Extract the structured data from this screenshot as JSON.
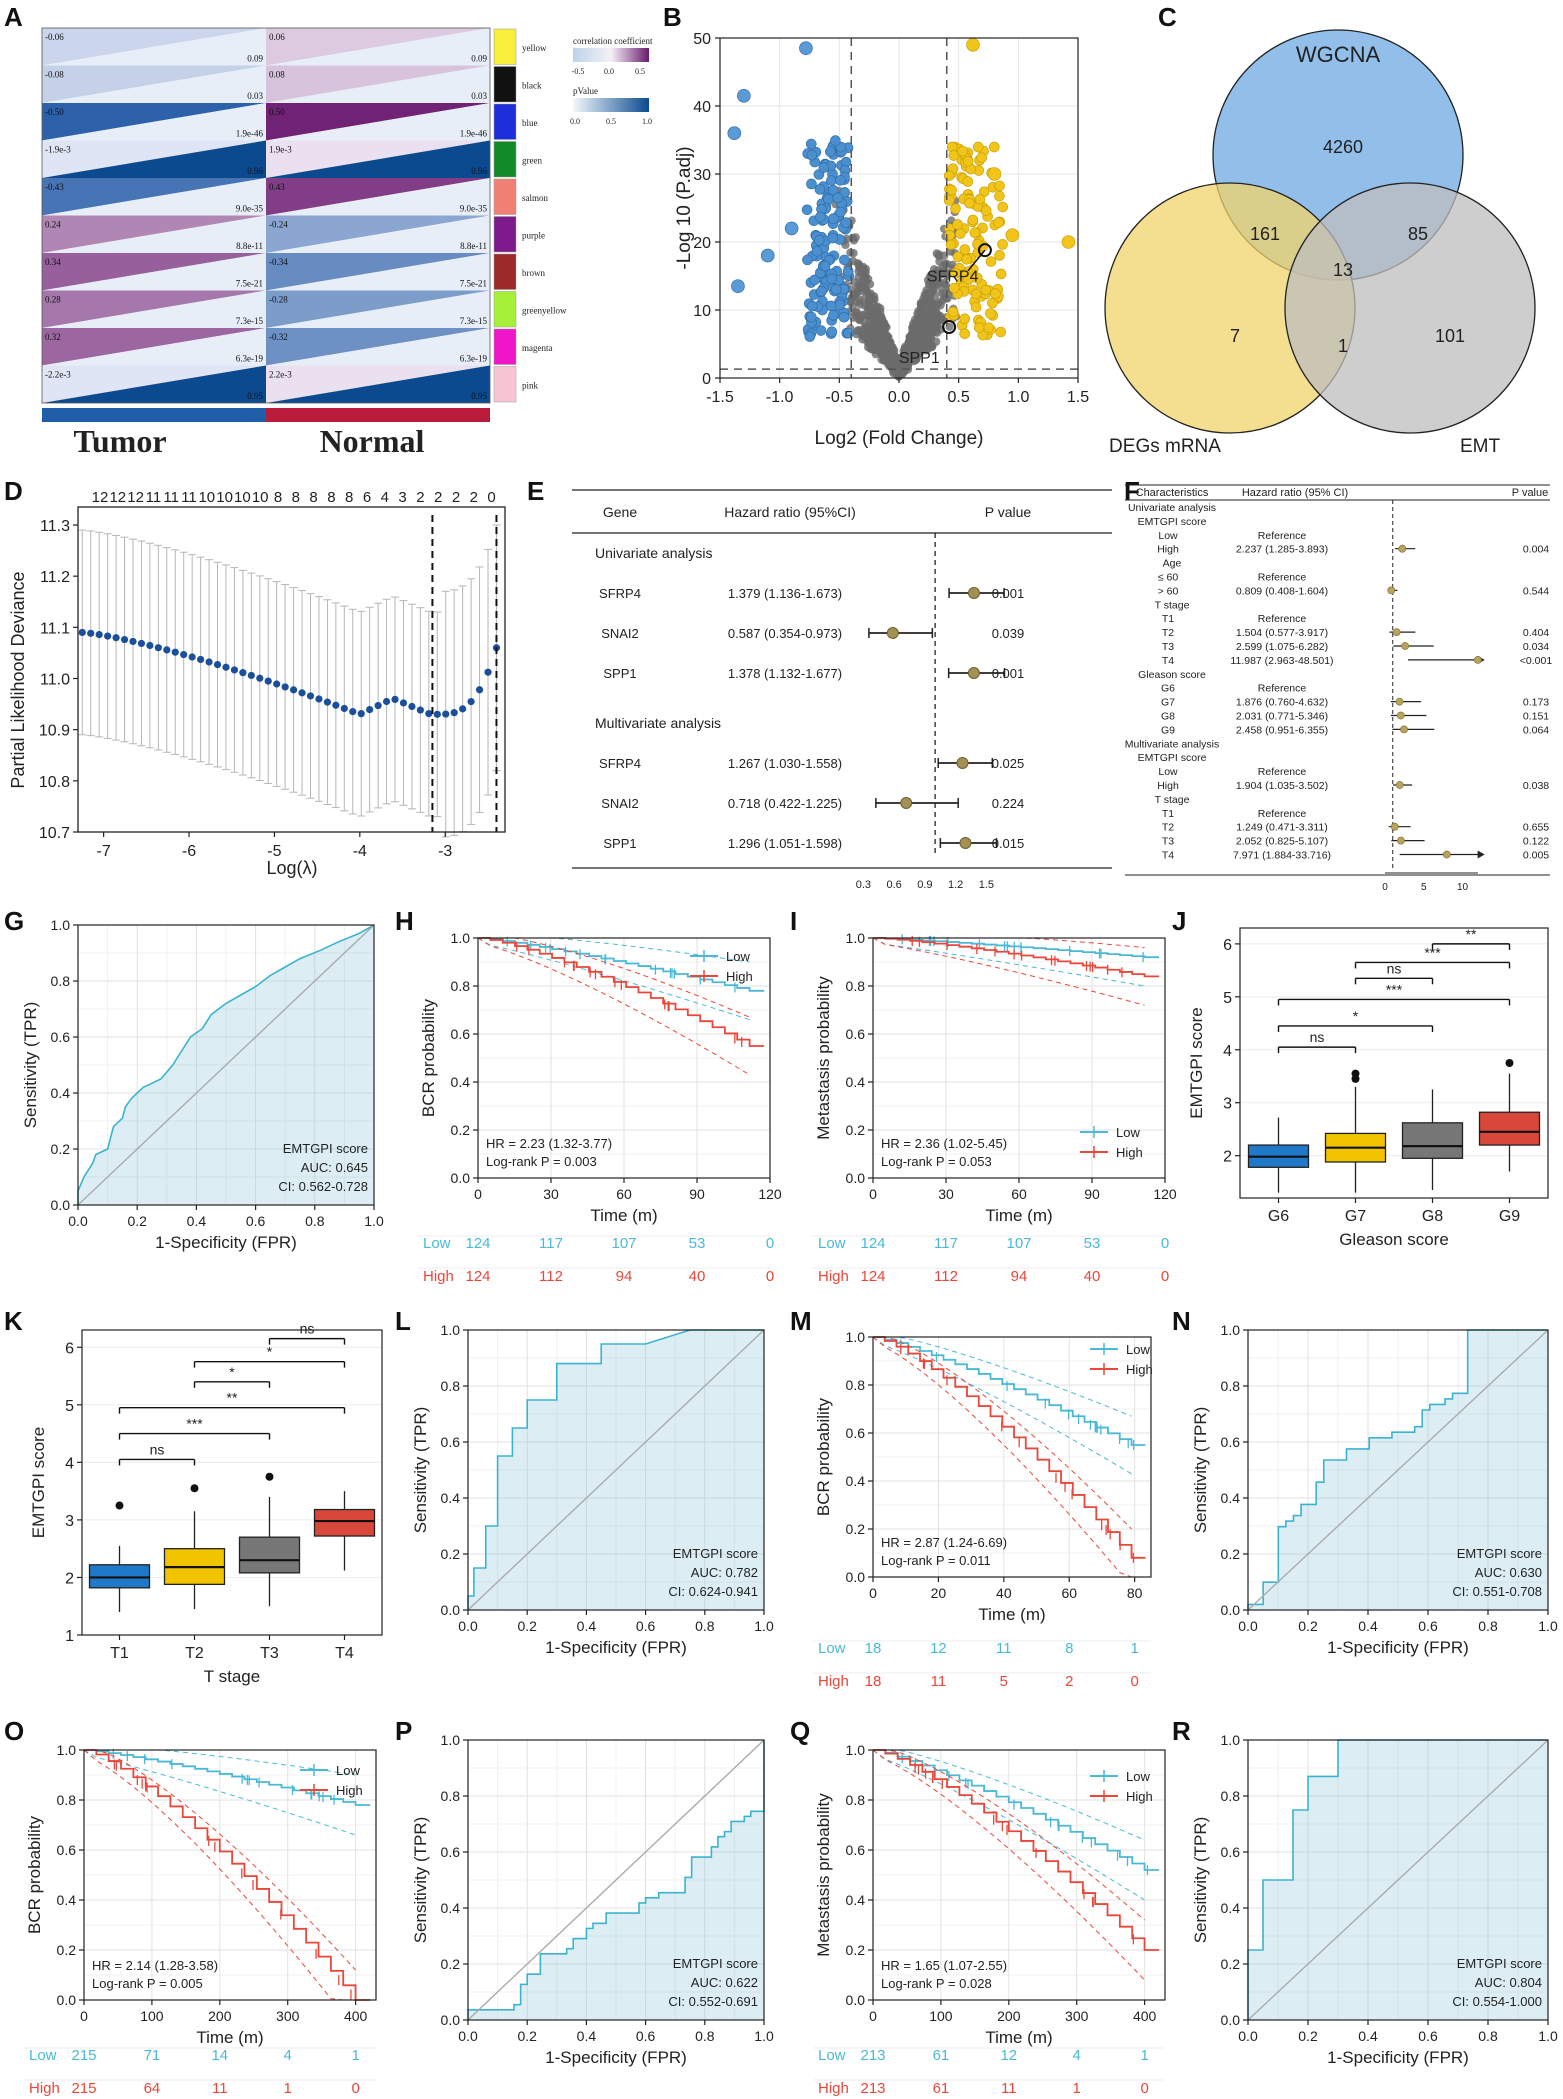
{
  "panel_labels": [
    "A",
    "B",
    "C",
    "D",
    "E",
    "F",
    "G",
    "H",
    "I",
    "J",
    "K",
    "L",
    "M",
    "N",
    "O",
    "P",
    "Q",
    "R"
  ],
  "colors": {
    "blue": "#1f77b4",
    "gold": "#f0c419",
    "grey": "#6b6b6b",
    "purple": "#6a1b6e",
    "navy": "#08306b",
    "low": "#4ab9d6",
    "high": "#e8473a",
    "fill": "#d9eef4",
    "curve": "#3bb3d0"
  },
  "panelA": {
    "column_labels": [
      "Tumor",
      "Normal"
    ],
    "legend_title1": "correlation coefficient",
    "legend_ticks1": [
      "-0.5",
      "0.0",
      "0.5"
    ],
    "legend_title2": "pValue",
    "legend_ticks2": [
      "0.0",
      "0.5",
      "1.0"
    ],
    "modules": [
      {
        "name": "yellow",
        "color": "#f7ef3a",
        "tumor_r": "-0.06",
        "tumor_p": "0.09",
        "normal_r": "0.06",
        "normal_p": "0.09"
      },
      {
        "name": "black",
        "color": "#111111",
        "tumor_r": "-0.08",
        "tumor_p": "0.03",
        "normal_r": "0.08",
        "normal_p": "0.03"
      },
      {
        "name": "blue",
        "color": "#1e2fd9",
        "tumor_r": "-0.50",
        "tumor_p": "1.9e-46",
        "normal_r": "0.50",
        "normal_p": "1.9e-46"
      },
      {
        "name": "green",
        "color": "#138a2a",
        "tumor_r": "-1.9e-3",
        "tumor_p": "0.96",
        "normal_r": "1.9e-3",
        "normal_p": "0.96"
      },
      {
        "name": "salmon",
        "color": "#f07f74",
        "tumor_r": "-0.43",
        "tumor_p": "9.0e-35",
        "normal_r": "0.43",
        "normal_p": "9.0e-35"
      },
      {
        "name": "purple",
        "color": "#7d1a8c",
        "tumor_r": "0.24",
        "tumor_p": "8.8e-11",
        "normal_r": "-0.24",
        "normal_p": "8.8e-11"
      },
      {
        "name": "brown",
        "color": "#9c2a2a",
        "tumor_r": "0.34",
        "tumor_p": "7.5e-21",
        "normal_r": "-0.34",
        "normal_p": "7.5e-21"
      },
      {
        "name": "greenyellow",
        "color": "#a6f03a",
        "tumor_r": "0.28",
        "tumor_p": "7.3e-15",
        "normal_r": "-0.28",
        "normal_p": "7.3e-15"
      },
      {
        "name": "magenta",
        "color": "#f015c8",
        "tumor_r": "0.32",
        "tumor_p": "6.3e-19",
        "normal_r": "-0.32",
        "normal_p": "6.3e-19"
      },
      {
        "name": "pink",
        "color": "#f7c6d2",
        "tumor_r": "-2.2e-3",
        "tumor_p": "0.95",
        "normal_r": "2.2e-3",
        "normal_p": "0.95"
      }
    ]
  },
  "chart_data": [
    {
      "panel": "B",
      "type": "scatter",
      "title": "",
      "xlabel": "Log2 (Fold Change)",
      "ylabel": "-Log 10 (P.adj)",
      "xlim": [
        -1.5,
        1.5
      ],
      "ylim": [
        0,
        50
      ],
      "xticks": [
        "-1.5",
        "-1.0",
        "-0.5",
        "0.0",
        "0.5",
        "1.0",
        "1.5"
      ],
      "yticks": [
        "0",
        "10",
        "20",
        "30",
        "40",
        "50"
      ],
      "annotations": [
        "SFRP4",
        "SPP1"
      ]
    },
    {
      "panel": "C",
      "type": "venn",
      "sets": [
        "WGCNA",
        "DEGs mRNA",
        "EMT"
      ],
      "regions": {
        "WGCNA_only": "4260",
        "WGCNA_DEG": "161",
        "WGCNA_EMT": "85",
        "all": "13",
        "DEG_only": "7",
        "DEG_EMT": "1",
        "EMT_only": "101"
      }
    },
    {
      "panel": "D",
      "type": "line",
      "xlabel": "Log(λ)",
      "ylabel": "Partial Likelihood Deviance",
      "xlim": [
        -7.3,
        -2.3
      ],
      "ylim": [
        10.7,
        11.3
      ],
      "xticks": [
        "-7",
        "-6",
        "-5",
        "-4",
        "-3"
      ],
      "yticks": [
        "10.7",
        "10.8",
        "10.9",
        "11.0",
        "11.1",
        "11.2",
        "11.3"
      ],
      "top_ticks": [
        "12",
        "12",
        "12",
        "11",
        "11",
        "11",
        "10",
        "10",
        "10",
        "10",
        "8",
        "8",
        "8",
        "8",
        "8",
        "6",
        "4",
        "3",
        "2",
        "2",
        "2",
        "2",
        "0"
      ]
    },
    {
      "panel": "E",
      "type": "table",
      "headers": [
        "Gene",
        "Hazard ratio (95%CI)",
        "P value"
      ],
      "sections": [
        {
          "name": "Univariate analysis",
          "rows": [
            [
              "SFRP4",
              "1.379 (1.136-1.673)",
              "0.001"
            ],
            [
              "SNAI2",
              "0.587 (0.354-0.973)",
              "0.039"
            ],
            [
              "SPP1",
              "1.378 (1.132-1.677)",
              "0.001"
            ]
          ]
        },
        {
          "name": "Multivariate analysis",
          "rows": [
            [
              "SFRP4",
              "1.267 (1.030-1.558)",
              "0.025"
            ],
            [
              "SNAI2",
              "0.718 (0.422-1.225)",
              "0.224"
            ],
            [
              "SPP1",
              "1.296 (1.051-1.598)",
              "0.015"
            ]
          ]
        }
      ],
      "axis_ticks": [
        "0.3",
        "0.6",
        "0.9",
        "1.2",
        "1.5"
      ]
    },
    {
      "panel": "F",
      "type": "table",
      "headers": [
        "Characteristics",
        "Hazard ratio (95% CI)",
        "P value"
      ],
      "rows": [
        [
          "Univariate analysis",
          "",
          ""
        ],
        [
          "EMTGPI score",
          "",
          ""
        ],
        [
          "Low",
          "Reference",
          ""
        ],
        [
          "High",
          "2.237 (1.285-3.893)",
          "0.004"
        ],
        [
          "Age",
          "",
          ""
        ],
        [
          "≤ 60",
          "Reference",
          ""
        ],
        [
          "> 60",
          "0.809 (0.408-1.604)",
          "0.544"
        ],
        [
          "T stage",
          "",
          ""
        ],
        [
          "T1",
          "Reference",
          ""
        ],
        [
          "T2",
          "1.504 (0.577-3.917)",
          "0.404"
        ],
        [
          "T3",
          "2.599 (1.075-6.282)",
          "0.034"
        ],
        [
          "T4",
          "11.987 (2.963-48.501)",
          "<0.001"
        ],
        [
          "Gleason score",
          "",
          ""
        ],
        [
          "G6",
          "Reference",
          ""
        ],
        [
          "G7",
          "1.876 (0.760-4.632)",
          "0.173"
        ],
        [
          "G8",
          "2.031 (0.771-5.346)",
          "0.151"
        ],
        [
          "G9",
          "2.458 (0.951-6.355)",
          "0.064"
        ],
        [
          "Multivariate analysis",
          "",
          ""
        ],
        [
          "EMTGPI score",
          "",
          ""
        ],
        [
          "Low",
          "Reference",
          ""
        ],
        [
          "High",
          "1.904 (1.035-3.502)",
          "0.038"
        ],
        [
          "T stage",
          "",
          ""
        ],
        [
          "T1",
          "Reference",
          ""
        ],
        [
          "T2",
          "1.249 (0.471-3.311)",
          "0.655"
        ],
        [
          "T3",
          "2.052 (0.825-5.107)",
          "0.122"
        ],
        [
          "T4",
          "7.971 (1.884-33.716)",
          "0.005"
        ]
      ],
      "axis_ticks": [
        "0",
        "5",
        "10"
      ]
    },
    {
      "panel": "G",
      "type": "roc",
      "legend": "EMTGPI score",
      "auc": "AUC: 0.645",
      "ci": "CI: 0.562-0.728"
    },
    {
      "panel": "H",
      "type": "km",
      "ylabel": "BCR probability",
      "xlabel": "Time (m)",
      "xticks": [
        "0",
        "30",
        "60",
        "90",
        "120"
      ],
      "hr": "HR = 2.23 (1.32-3.77)",
      "p": "Log-rank P = 0.003",
      "risk_low": [
        "124",
        "117",
        "107",
        "53",
        "0"
      ],
      "risk_high": [
        "124",
        "112",
        "94",
        "40",
        "0"
      ]
    },
    {
      "panel": "I",
      "type": "km",
      "ylabel": "Metastasis probability",
      "xlabel": "Time (m)",
      "xticks": [
        "0",
        "30",
        "60",
        "90",
        "120"
      ],
      "hr": "HR = 2.36 (1.02-5.45)",
      "p": "Log-rank P = 0.053",
      "risk_low": [
        "124",
        "117",
        "107",
        "53",
        "0"
      ],
      "risk_high": [
        "124",
        "112",
        "94",
        "40",
        "0"
      ]
    },
    {
      "panel": "J",
      "type": "boxplot",
      "xlabel": "Gleason score",
      "ylabel": "EMTGPI score",
      "categories": [
        "G6",
        "G7",
        "G8",
        "G9"
      ],
      "yticks": [
        "2",
        "3",
        "4",
        "5",
        "6"
      ],
      "signif": [
        "ns",
        "*",
        "***",
        "ns",
        "***",
        "**"
      ]
    },
    {
      "panel": "K",
      "type": "boxplot",
      "xlabel": "T stage",
      "ylabel": "EMTGPI score",
      "categories": [
        "T1",
        "T2",
        "T3",
        "T4"
      ],
      "yticks": [
        "1",
        "2",
        "3",
        "4",
        "5",
        "6"
      ],
      "signif": [
        "ns",
        "***",
        "**",
        "*",
        "*",
        "ns"
      ]
    },
    {
      "panel": "L",
      "type": "roc",
      "legend": "EMTGPI score",
      "auc": "AUC: 0.782",
      "ci": "CI: 0.624-0.941"
    },
    {
      "panel": "M",
      "type": "km",
      "ylabel": "BCR probability",
      "xlabel": "Time (m)",
      "xticks": [
        "0",
        "20",
        "40",
        "60",
        "80"
      ],
      "hr": "HR = 2.87 (1.24-6.69)",
      "p": "Log-rank P = 0.011",
      "risk_low": [
        "18",
        "12",
        "11",
        "8",
        "1"
      ],
      "risk_high": [
        "18",
        "11",
        "5",
        "2",
        "0"
      ]
    },
    {
      "panel": "N",
      "type": "roc",
      "legend": "EMTGPI score",
      "auc": "AUC: 0.630",
      "ci": "CI: 0.551-0.708"
    },
    {
      "panel": "O",
      "type": "km",
      "ylabel": "BCR probability",
      "xlabel": "Time (m)",
      "xticks": [
        "0",
        "100",
        "200",
        "300",
        "400"
      ],
      "hr": "HR = 2.14 (1.28-3.58)",
      "p": "Log-rank P = 0.005",
      "risk_low": [
        "215",
        "71",
        "14",
        "4",
        "1"
      ],
      "risk_high": [
        "215",
        "64",
        "11",
        "1",
        "0"
      ]
    },
    {
      "panel": "P",
      "type": "roc",
      "legend": "EMTGPI score",
      "auc": "AUC: 0.622",
      "ci": "CI: 0.552-0.691"
    },
    {
      "panel": "Q",
      "type": "km",
      "ylabel": "Metastasis probability",
      "xlabel": "Time (m)",
      "xticks": [
        "0",
        "100",
        "200",
        "300",
        "400"
      ],
      "hr": "HR = 1.65 (1.07-2.55)",
      "p": "Log-rank P = 0.028",
      "risk_low": [
        "213",
        "61",
        "12",
        "4",
        "1"
      ],
      "risk_high": [
        "213",
        "61",
        "11",
        "1",
        "0"
      ]
    },
    {
      "panel": "R",
      "type": "roc",
      "legend": "EMTGPI score",
      "auc": "AUC: 0.804",
      "ci": "CI: 0.554-1.000"
    }
  ],
  "common": {
    "legend_low": "Low",
    "legend_high": "High",
    "roc_xlabel": "1-Specificity (FPR)",
    "roc_ylabel": "Sensitivity (TPR)",
    "roc_ticks": [
      "0.0",
      "0.2",
      "0.4",
      "0.6",
      "0.8",
      "1.0"
    ],
    "prob_ticks": [
      "0.0",
      "0.2",
      "0.4",
      "0.6",
      "0.8",
      "1.0"
    ]
  }
}
